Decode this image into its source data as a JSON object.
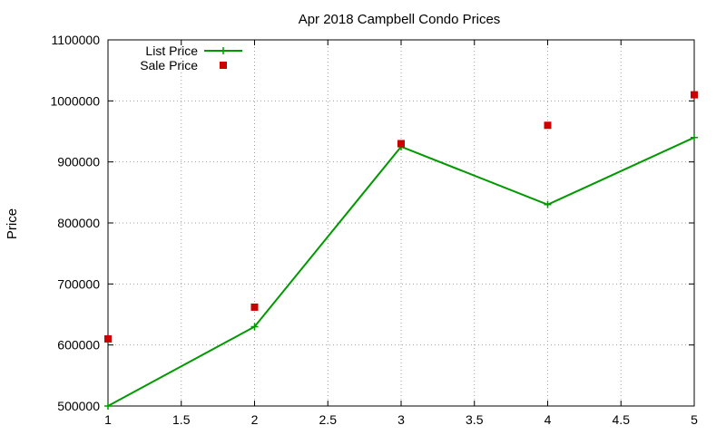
{
  "chart_data": {
    "type": "line",
    "title": "Apr 2018 Campbell Condo Prices",
    "xlabel": "",
    "ylabel": "Price",
    "xlim": [
      1,
      5
    ],
    "ylim": [
      500000,
      1100000
    ],
    "xticks": [
      "1",
      "1.5",
      "2",
      "2.5",
      "3",
      "3.5",
      "4",
      "4.5",
      "5"
    ],
    "xtick_values": [
      1,
      1.5,
      2,
      2.5,
      3,
      3.5,
      4,
      4.5,
      5
    ],
    "yticks": [
      "500000",
      "600000",
      "700000",
      "800000",
      "900000",
      "1000000",
      "1100000"
    ],
    "ytick_values": [
      500000,
      600000,
      700000,
      800000,
      900000,
      1000000,
      1100000
    ],
    "grid": true,
    "legend_position": "top-left",
    "series": [
      {
        "name": "List Price",
        "style": "lines+crosses",
        "color": "#009900",
        "x": [
          1,
          2,
          3,
          4,
          5
        ],
        "y": [
          500000,
          630000,
          925000,
          830000,
          940000
        ]
      },
      {
        "name": "Sale Price",
        "style": "squares",
        "color": "#cc0000",
        "x": [
          1,
          2,
          3,
          4,
          5
        ],
        "y": [
          610000,
          662000,
          930000,
          960000,
          1010000
        ]
      }
    ]
  }
}
